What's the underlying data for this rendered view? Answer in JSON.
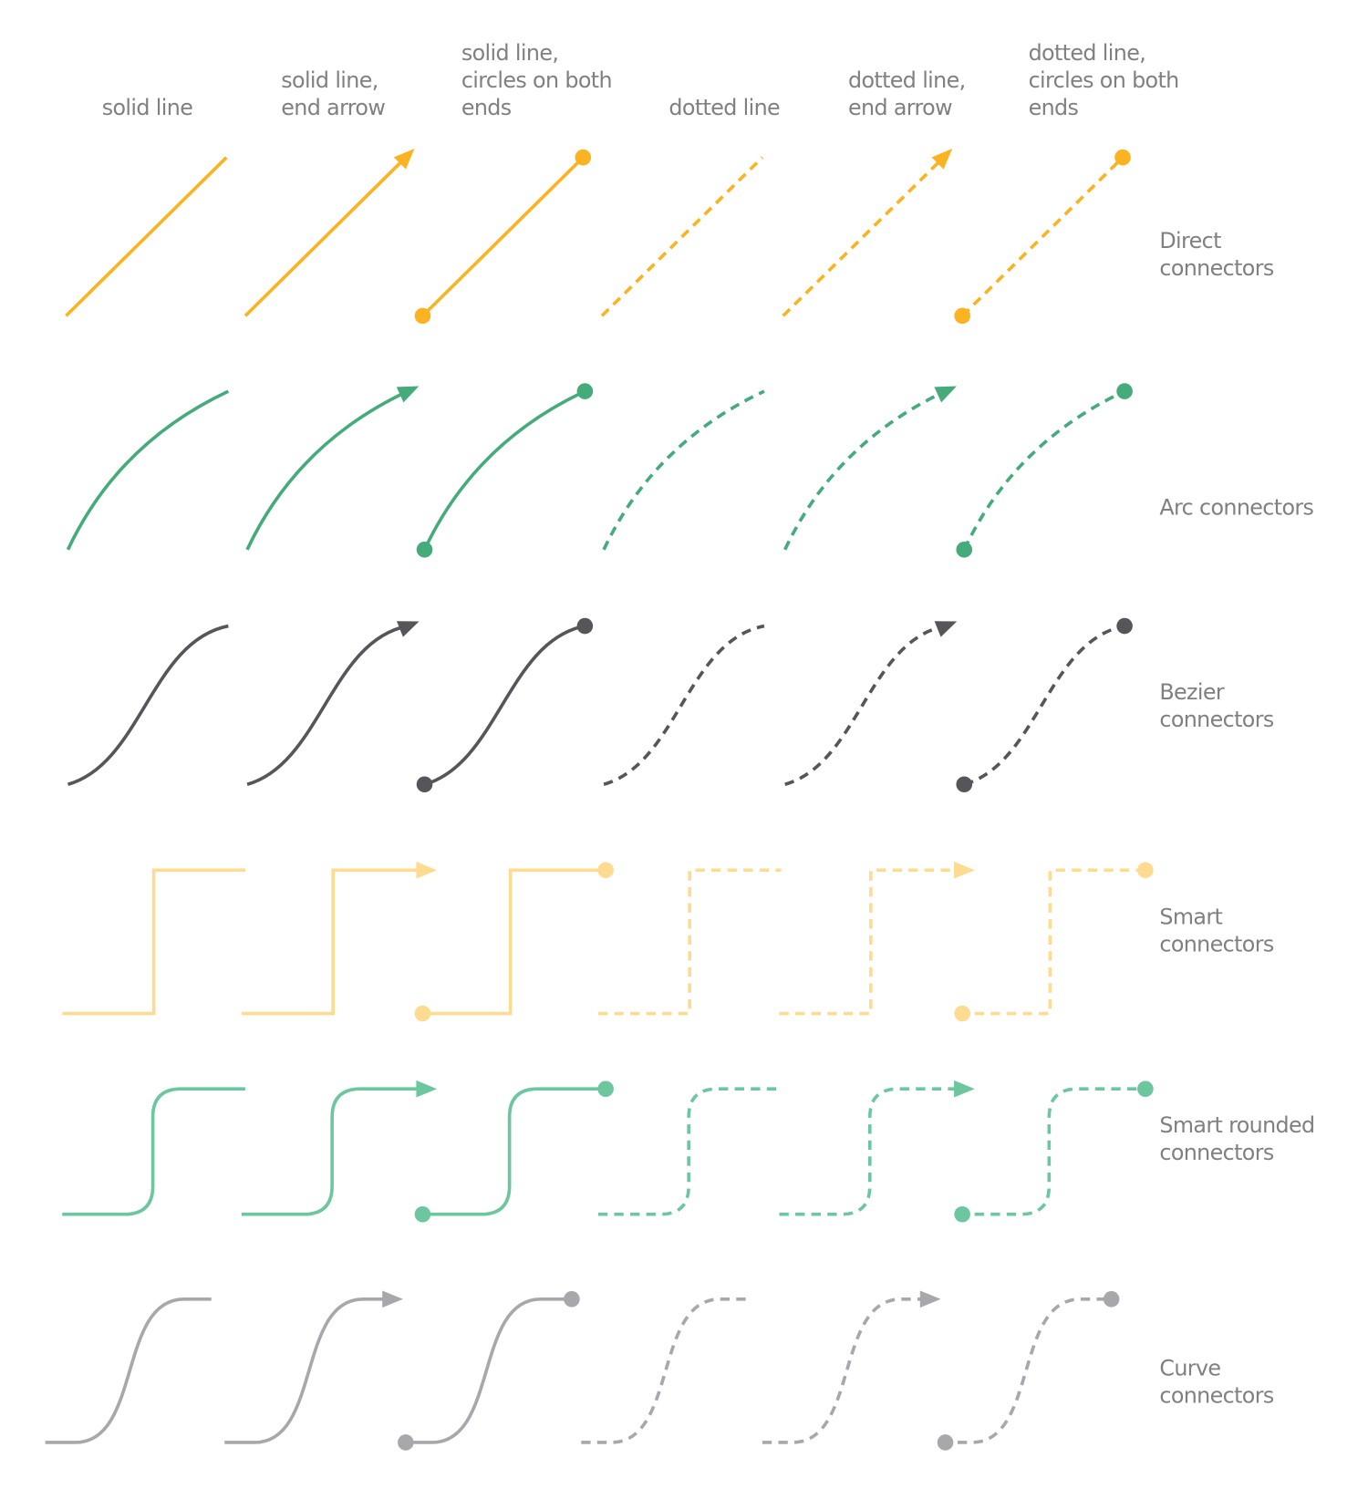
{
  "columns": [
    {
      "lines": [
        "solid line"
      ],
      "dashed": false,
      "arrow": false,
      "circles": false
    },
    {
      "lines": [
        "solid line,",
        "end arrow"
      ],
      "dashed": false,
      "arrow": true,
      "circles": false
    },
    {
      "lines": [
        "solid line,",
        "circles on both",
        "ends"
      ],
      "dashed": false,
      "arrow": false,
      "circles": true
    },
    {
      "lines": [
        "dotted line"
      ],
      "dashed": true,
      "arrow": false,
      "circles": false
    },
    {
      "lines": [
        "dotted line,",
        "end arrow"
      ],
      "dashed": true,
      "arrow": true,
      "circles": false
    },
    {
      "lines": [
        "dotted line,",
        "circles on both",
        "ends"
      ],
      "dashed": true,
      "arrow": false,
      "circles": true
    }
  ],
  "rows": [
    {
      "id": "direct",
      "lines": [
        "Direct",
        "connectors"
      ],
      "color": "#FBB321"
    },
    {
      "id": "arc",
      "lines": [
        "Arc connectors"
      ],
      "color": "#45AB7A"
    },
    {
      "id": "bezier",
      "lines": [
        "Bezier",
        "connectors"
      ],
      "color": "#56555A"
    },
    {
      "id": "smart",
      "lines": [
        "Smart",
        "connectors"
      ],
      "color": "#FDDC92"
    },
    {
      "id": "smart-rounded",
      "lines": [
        "Smart rounded",
        "connectors"
      ],
      "color": "#6DC79E"
    },
    {
      "id": "curve",
      "lines": [
        "Curve",
        "connectors"
      ],
      "color": "#A8A7AC"
    }
  ]
}
